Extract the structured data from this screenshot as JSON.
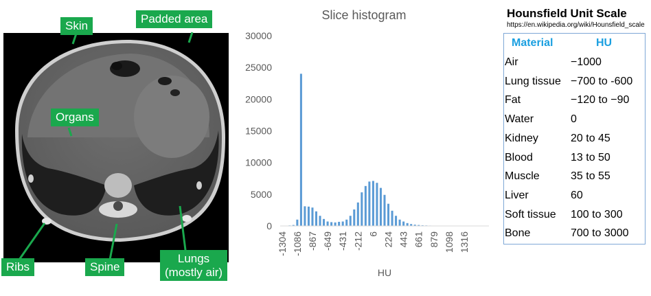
{
  "ct_image": {
    "labels": {
      "skin": "Skin",
      "padded": "Padded area",
      "organs": "Organs",
      "ribs": "Ribs",
      "spine": "Spine",
      "lungs": "Lungs\n(mostly air)"
    }
  },
  "chart_data": {
    "type": "bar",
    "title": "Slice histogram",
    "xlabel": "HU",
    "ylabel": "",
    "ylim": [
      0,
      30000
    ],
    "yticks": [
      0,
      5000,
      10000,
      15000,
      20000,
      25000,
      30000
    ],
    "x_tick_labels": [
      "-1304",
      "-1086",
      "-867",
      "-649",
      "-431",
      "-212",
      "6",
      "224",
      "443",
      "661",
      "879",
      "1098",
      "1316"
    ],
    "x": [
      -1304,
      -1250,
      -1195,
      -1141,
      -1086,
      -1032,
      -977,
      -922,
      -867,
      -813,
      -758,
      -704,
      -649,
      -595,
      -540,
      -486,
      -431,
      -376,
      -322,
      -267,
      -212,
      -158,
      -103,
      -49,
      6,
      60,
      115,
      170,
      224,
      279,
      333,
      388,
      443,
      497,
      552,
      606,
      661,
      716,
      770,
      825,
      879,
      934,
      989,
      1043,
      1098,
      1152,
      1207,
      1262,
      1316,
      1371,
      1425,
      1480,
      1534,
      1589,
      1643
    ],
    "values": [
      50,
      50,
      80,
      150,
      1000,
      24000,
      3100,
      3050,
      2900,
      2300,
      1600,
      1100,
      700,
      600,
      550,
      650,
      700,
      1000,
      1600,
      2600,
      3700,
      5300,
      6300,
      7000,
      7100,
      6800,
      6000,
      4900,
      3500,
      2400,
      1600,
      1000,
      700,
      450,
      300,
      200,
      150,
      100,
      80,
      60,
      50,
      40,
      40,
      30,
      30,
      30,
      30,
      30,
      30,
      30,
      30,
      30,
      30,
      30,
      30
    ],
    "bar_color": "#5b9bd5"
  },
  "hu_scale": {
    "title": "Hounsfield Unit Scale",
    "url": "https://en.wikipedia.org/wiki/Hounsfield_scale",
    "headers": [
      "Material",
      "HU"
    ],
    "rows": [
      [
        "Air",
        "−1000"
      ],
      [
        "Lung tissue",
        "−700 to -600"
      ],
      [
        "Fat",
        "−120 to −90"
      ],
      [
        "Water",
        "0"
      ],
      [
        "Kidney",
        "20 to 45"
      ],
      [
        "Blood",
        "13 to 50"
      ],
      [
        "Muscle",
        "35 to 55"
      ],
      [
        "Liver",
        "60"
      ],
      [
        "Soft tissue",
        "100 to 300"
      ],
      [
        "Bone",
        "700 to 3000"
      ]
    ],
    "header_color": "#1a9fe0"
  }
}
